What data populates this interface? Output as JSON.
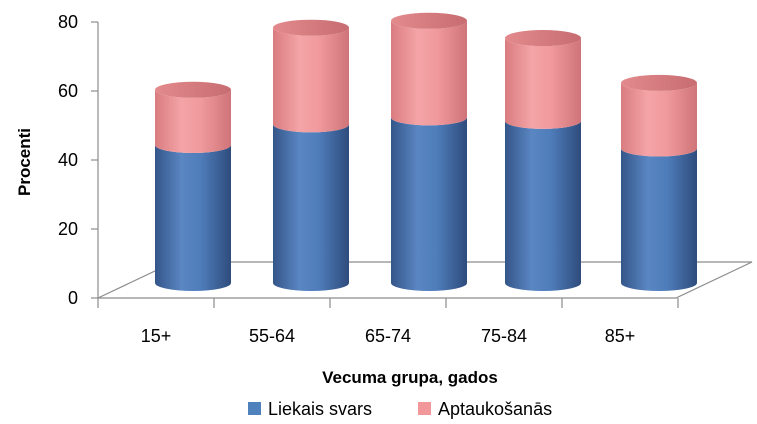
{
  "chart_data": {
    "type": "bar",
    "stacked": true,
    "style": "3d-cylinder",
    "categories": [
      "15+",
      "55-64",
      "65-74",
      "75-84",
      "85+"
    ],
    "series": [
      {
        "name": "Liekais svars",
        "values": [
          40,
          46,
          48,
          47,
          39
        ],
        "color": "#4F81BD"
      },
      {
        "name": "Aptaukošanās",
        "values": [
          16,
          28,
          28,
          24,
          19
        ],
        "color": "#F2979A"
      }
    ],
    "yticks": [
      0,
      20,
      40,
      60,
      80
    ],
    "ylim": [
      0,
      80
    ],
    "xlabel": "Vecuma grupa, gados",
    "ylabel": "Procenti",
    "legend_position": "bottom",
    "grid": false
  }
}
